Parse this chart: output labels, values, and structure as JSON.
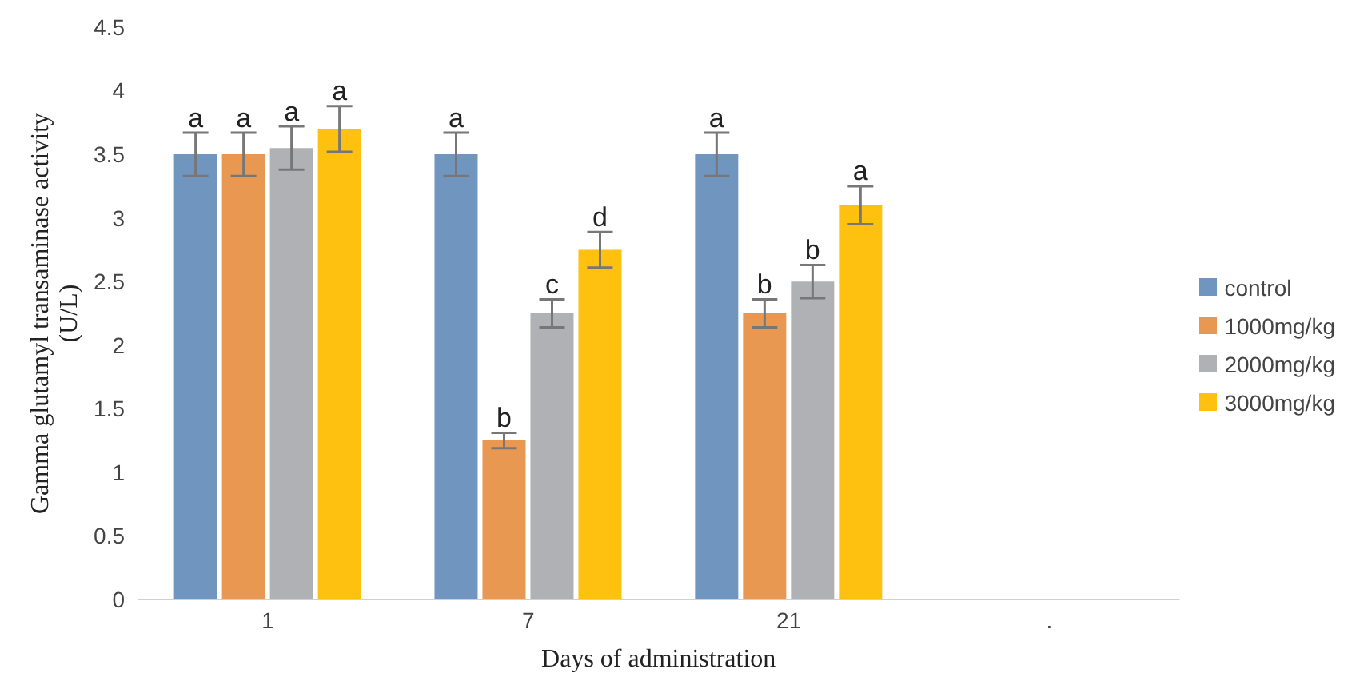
{
  "chart_data": {
    "type": "bar",
    "xlabel": "Days of administration",
    "ylabel": "Gamma glutamyl transaminase activity (U/L)",
    "categories": [
      "1",
      "7",
      "21",
      "."
    ],
    "series": [
      {
        "name": "control",
        "color": "#7096c0",
        "values": [
          3.5,
          3.5,
          3.5,
          null
        ],
        "errors": [
          0.17,
          0.17,
          0.17,
          null
        ],
        "value_labels": [
          "a",
          "a",
          "a",
          null
        ]
      },
      {
        "name": "1000mg/kg",
        "color": "#e99852",
        "values": [
          3.5,
          1.25,
          2.25,
          null
        ],
        "errors": [
          0.17,
          0.06,
          0.11,
          null
        ],
        "value_labels": [
          "a",
          "b",
          "b",
          null
        ]
      },
      {
        "name": "2000mg/kg",
        "color": "#b0b1b4",
        "values": [
          3.55,
          2.25,
          2.5,
          null
        ],
        "errors": [
          0.17,
          0.11,
          0.13,
          null
        ],
        "value_labels": [
          "a",
          "c",
          "b",
          null
        ]
      },
      {
        "name": "3000mg/kg",
        "color": "#fec110",
        "values": [
          3.7,
          2.75,
          3.1,
          null
        ],
        "errors": [
          0.18,
          0.14,
          0.15,
          null
        ],
        "value_labels": [
          "a",
          "d",
          "a",
          null
        ]
      }
    ],
    "ylim": [
      0,
      4.5
    ],
    "yticks": [
      0,
      0.5,
      1,
      1.5,
      2,
      2.5,
      3,
      3.5,
      4,
      4.5
    ],
    "grid": false,
    "legend": "right"
  }
}
